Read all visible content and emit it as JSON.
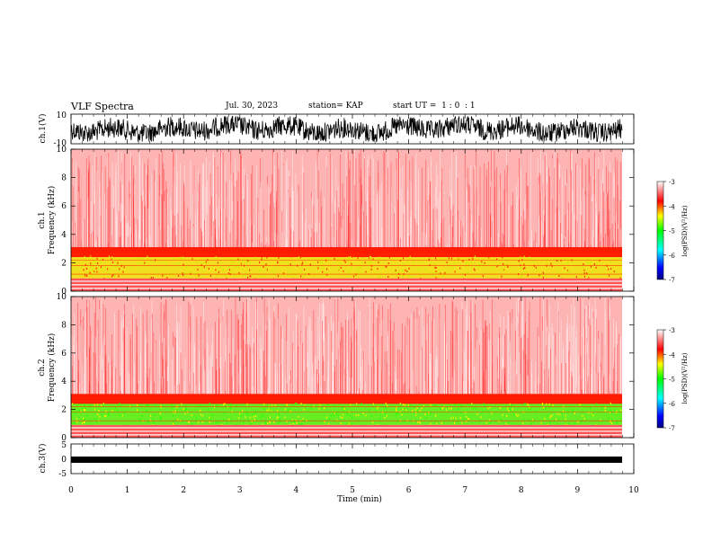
{
  "header": {
    "title": "VLF Spectra",
    "date": "Jul. 30, 2023",
    "station": "station= KAP",
    "start": "start UT =  1 : 0  : 1"
  },
  "colors": {
    "colormap": [
      "#000080",
      "#0000ff",
      "#00ffff",
      "#00ff00",
      "#ffff00",
      "#ff0000",
      "#ffffff"
    ]
  },
  "chart_data": [
    {
      "type": "line",
      "ylabel": "ch.1(V)",
      "ylim": [
        -10,
        10
      ],
      "yticks": [
        "10",
        "-10"
      ],
      "xlim": [
        0,
        10
      ]
    },
    {
      "type": "heatmap",
      "ylabel_top": "ch.1",
      "ylabel": "Frequency (kHz)",
      "ylim": [
        0,
        10
      ],
      "yticks": [
        "0",
        "2",
        "4",
        "6",
        "8",
        "10"
      ],
      "xlim": [
        0,
        10
      ],
      "colorbar": {
        "label": "log(PSD)(V²/Hz)",
        "ticks": [
          "-3",
          "-4",
          "-5",
          "-6",
          "-7"
        ],
        "range": [
          -7,
          -3
        ]
      }
    },
    {
      "type": "heatmap",
      "ylabel_top": "ch.2",
      "ylabel": "Frequency (kHz)",
      "ylim": [
        0,
        10
      ],
      "yticks": [
        "0",
        "2",
        "4",
        "6",
        "8",
        "10"
      ],
      "xlim": [
        0,
        10
      ],
      "colorbar": {
        "label": "log(PSD)(V²/Hz)",
        "ticks": [
          "-3",
          "-4",
          "-5",
          "-6",
          "-7"
        ],
        "range": [
          -7,
          -3
        ]
      }
    },
    {
      "type": "line",
      "ylabel": "ch.3(V)",
      "ylim": [
        -5,
        5
      ],
      "yticks": [
        "5",
        "0",
        "-5"
      ],
      "xlim": [
        0,
        10
      ],
      "xlabel": "Time (min)",
      "xticks": [
        "0",
        "1",
        "2",
        "3",
        "4",
        "5",
        "6",
        "7",
        "8",
        "9",
        "10"
      ]
    }
  ]
}
